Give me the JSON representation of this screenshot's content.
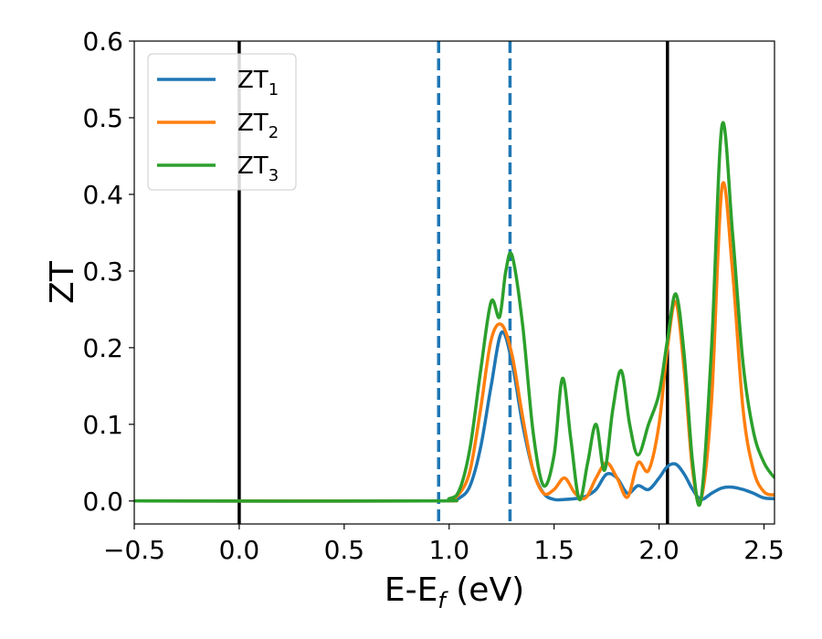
{
  "chart_data": {
    "type": "line",
    "xlabel": {
      "main": "E-E",
      "sub": "f",
      "suffix": " (eV)"
    },
    "ylabel": "ZT",
    "xlim": [
      -0.5,
      2.55
    ],
    "ylim": [
      -0.03,
      0.6
    ],
    "x_ticks": [
      -0.5,
      0.0,
      0.5,
      1.0,
      1.5,
      2.0,
      2.5
    ],
    "x_tick_labels": [
      "−0.5",
      "0.0",
      "0.5",
      "1.0",
      "1.5",
      "2.0",
      "2.5"
    ],
    "y_ticks": [
      0.0,
      0.1,
      0.2,
      0.3,
      0.4,
      0.5,
      0.6
    ],
    "y_tick_labels": [
      "0.0",
      "0.1",
      "0.2",
      "0.3",
      "0.4",
      "0.5",
      "0.6"
    ],
    "grid": false,
    "legend_position": "top-left",
    "vertical_lines": [
      {
        "x": 0.0,
        "color": "#000000",
        "style": "solid"
      },
      {
        "x": 2.04,
        "color": "#000000",
        "style": "solid"
      },
      {
        "x": 0.95,
        "color": "#1f77b4",
        "style": "dashed"
      },
      {
        "x": 1.29,
        "color": "#1f77b4",
        "style": "dashed"
      }
    ],
    "series": [
      {
        "name": "ZT",
        "sub": "1",
        "color": "#1f77b4",
        "x": [
          -0.5,
          0.9,
          1.0,
          1.05,
          1.1,
          1.15,
          1.2,
          1.25,
          1.3,
          1.35,
          1.4,
          1.45,
          1.5,
          1.55,
          1.6,
          1.65,
          1.7,
          1.75,
          1.8,
          1.85,
          1.9,
          1.95,
          2.0,
          2.04,
          2.08,
          2.12,
          2.16,
          2.2,
          2.25,
          2.3,
          2.35,
          2.4,
          2.45,
          2.5,
          2.55
        ],
        "y": [
          0,
          0,
          0.001,
          0.004,
          0.02,
          0.07,
          0.15,
          0.22,
          0.18,
          0.1,
          0.04,
          0.01,
          0.002,
          0.002,
          0.003,
          0.006,
          0.015,
          0.035,
          0.03,
          0.01,
          0.02,
          0.015,
          0.03,
          0.045,
          0.048,
          0.035,
          0.015,
          0.002,
          0.01,
          0.017,
          0.018,
          0.015,
          0.01,
          0.004,
          0.003
        ]
      },
      {
        "name": "ZT",
        "sub": "2",
        "color": "#ff7f0e",
        "x": [
          -0.5,
          0.9,
          1.0,
          1.05,
          1.1,
          1.15,
          1.2,
          1.25,
          1.3,
          1.35,
          1.4,
          1.45,
          1.5,
          1.55,
          1.6,
          1.65,
          1.7,
          1.75,
          1.8,
          1.85,
          1.9,
          1.95,
          2.0,
          2.04,
          2.08,
          2.12,
          2.16,
          2.2,
          2.25,
          2.3,
          2.35,
          2.4,
          2.45,
          2.5,
          2.55
        ],
        "y": [
          0,
          0,
          0.002,
          0.01,
          0.04,
          0.12,
          0.21,
          0.23,
          0.19,
          0.11,
          0.04,
          0.01,
          0.015,
          0.03,
          0.01,
          0.004,
          0.03,
          0.05,
          0.03,
          0.005,
          0.05,
          0.04,
          0.1,
          0.2,
          0.26,
          0.17,
          0.04,
          0.002,
          0.13,
          0.41,
          0.3,
          0.12,
          0.04,
          0.012,
          0.008
        ]
      },
      {
        "name": "ZT",
        "sub": "3",
        "color": "#2ca02c",
        "x": [
          -0.5,
          0.9,
          1.0,
          1.05,
          1.1,
          1.15,
          1.2,
          1.24,
          1.27,
          1.3,
          1.35,
          1.4,
          1.45,
          1.5,
          1.54,
          1.58,
          1.62,
          1.66,
          1.7,
          1.74,
          1.78,
          1.82,
          1.86,
          1.9,
          1.95,
          2.0,
          2.04,
          2.08,
          2.12,
          2.16,
          2.2,
          2.25,
          2.3,
          2.35,
          2.4,
          2.45,
          2.5,
          2.55
        ],
        "y": [
          0,
          0,
          0.003,
          0.015,
          0.07,
          0.17,
          0.26,
          0.24,
          0.3,
          0.32,
          0.23,
          0.09,
          0.02,
          0.06,
          0.16,
          0.08,
          0.002,
          0.05,
          0.1,
          0.04,
          0.12,
          0.17,
          0.1,
          0.06,
          0.1,
          0.14,
          0.21,
          0.27,
          0.19,
          0.05,
          0.002,
          0.2,
          0.49,
          0.35,
          0.18,
          0.09,
          0.05,
          0.03
        ]
      }
    ]
  }
}
